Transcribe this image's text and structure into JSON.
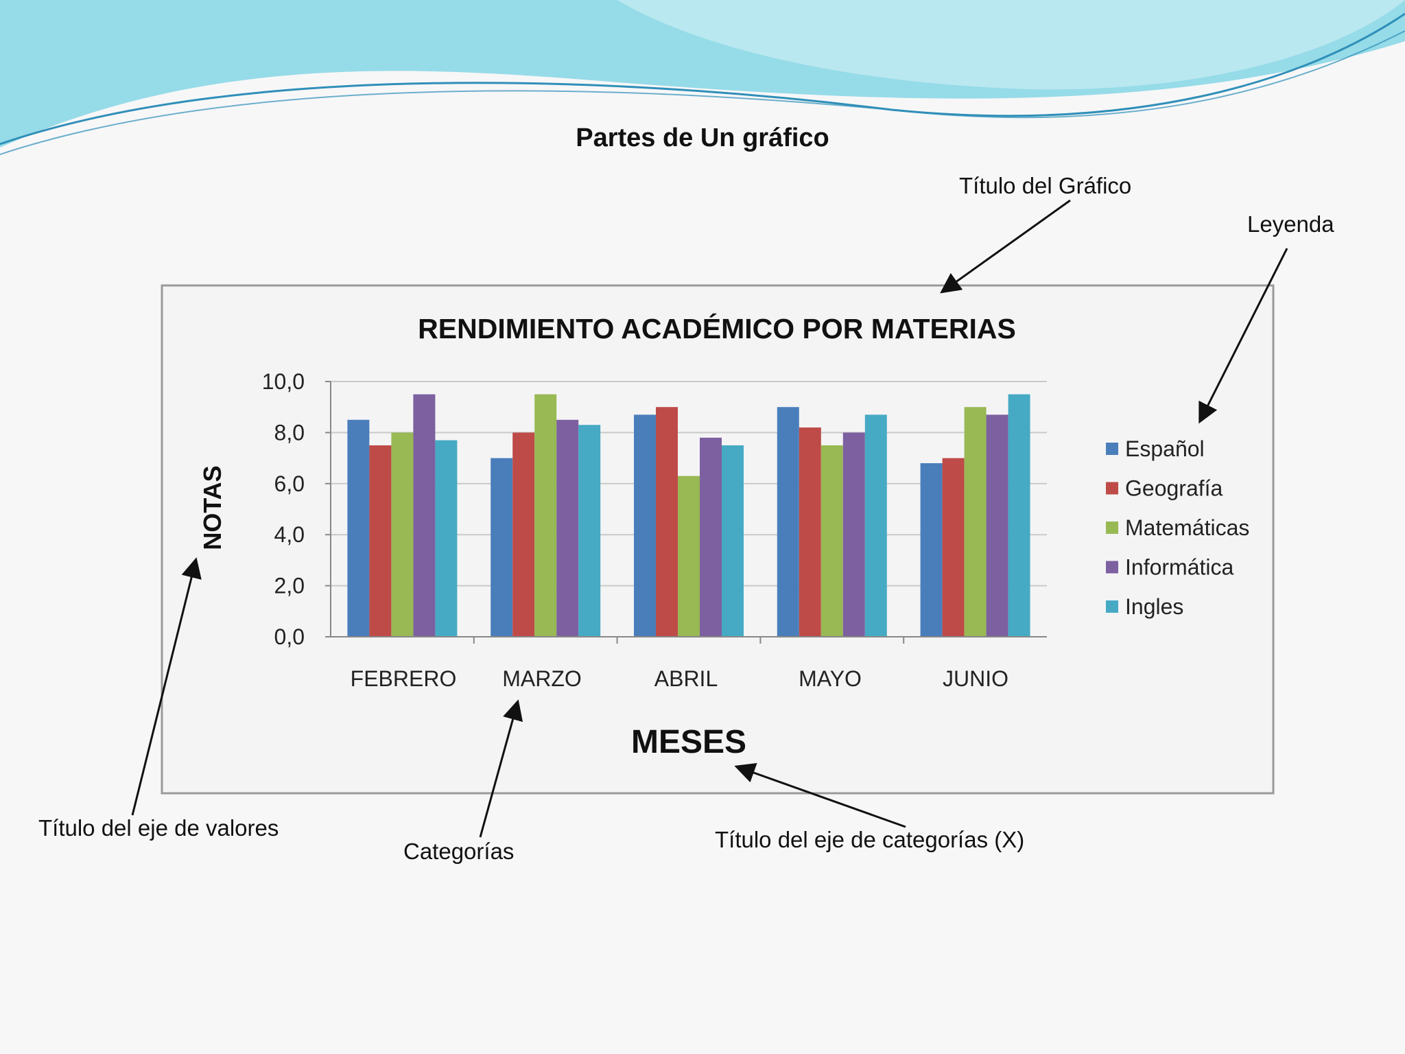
{
  "slide": {
    "title": "Partes de Un gráfico"
  },
  "callouts": {
    "chart_title": "Título del Gráfico",
    "legend": "Leyenda",
    "value_axis_title": "Título del eje de valores",
    "categories": "Categorías",
    "category_axis_title": "Título del eje de categorías (X)"
  },
  "colors": {
    "wave_light": "#c9eef3",
    "wave_mid": "#7dd3e3",
    "wave_dark": "#2f8fb8",
    "plot_border": "#9a9a9a",
    "gridline": "#c9c9c9"
  },
  "chart_data": {
    "type": "bar",
    "title": "RENDIMIENTO ACADÉMICO POR MATERIAS",
    "xlabel": "MESES",
    "ylabel": "NOTAS",
    "categories": [
      "FEBRERO",
      "MARZO",
      "ABRIL",
      "MAYO",
      "JUNIO"
    ],
    "ylim": [
      0,
      10
    ],
    "yticks": [
      "0,0",
      "2,0",
      "4,0",
      "6,0",
      "8,0",
      "10,0"
    ],
    "grid": true,
    "legend_position": "right",
    "series": [
      {
        "name": "Español",
        "color": "#4a7ebb",
        "values": [
          8.5,
          7.0,
          8.7,
          9.0,
          6.8
        ]
      },
      {
        "name": "Geografía",
        "color": "#be4b48",
        "values": [
          7.5,
          8.0,
          9.0,
          8.2,
          7.0
        ]
      },
      {
        "name": "Matemáticas",
        "color": "#98b954",
        "values": [
          8.0,
          9.5,
          6.3,
          7.5,
          9.0
        ]
      },
      {
        "name": "Informática",
        "color": "#7d60a0",
        "values": [
          9.5,
          8.5,
          7.8,
          8.0,
          8.7
        ]
      },
      {
        "name": "Ingles",
        "color": "#46aac4",
        "values": [
          7.7,
          8.3,
          7.5,
          8.7,
          9.5
        ]
      }
    ]
  }
}
